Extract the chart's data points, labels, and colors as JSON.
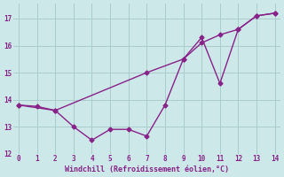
{
  "line1_x": [
    0,
    2,
    7,
    9,
    10,
    11,
    12,
    13,
    14
  ],
  "line1_y": [
    13.8,
    13.6,
    15.0,
    15.5,
    16.1,
    16.4,
    16.6,
    17.1,
    17.2
  ],
  "line2_x": [
    0,
    1,
    2,
    3,
    4,
    5,
    6,
    7,
    8,
    9,
    10,
    11,
    12,
    13,
    14
  ],
  "line2_y": [
    13.8,
    13.75,
    13.6,
    13.0,
    12.5,
    12.9,
    12.9,
    12.65,
    13.8,
    15.5,
    16.3,
    14.6,
    16.6,
    17.1,
    17.2
  ],
  "line_color": "#882288",
  "bg_color": "#cce8e8",
  "grid_color": "#aacccc",
  "xlabel": "Windchill (Refroidissement éolien,°C)",
  "xlabel_color": "#882288",
  "xlim": [
    -0.3,
    14.3
  ],
  "ylim": [
    12.0,
    17.55
  ],
  "yticks": [
    12,
    13,
    14,
    15,
    16,
    17
  ],
  "xticks": [
    0,
    1,
    2,
    3,
    4,
    5,
    6,
    7,
    8,
    9,
    10,
    11,
    12,
    13,
    14
  ],
  "marker": "D",
  "marker_size": 2.5,
  "line_width": 1.0
}
